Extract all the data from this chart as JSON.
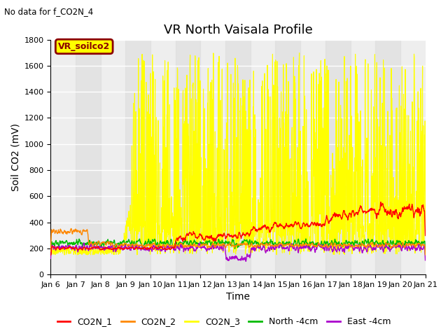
{
  "title": "VR North Vaisala Profile",
  "subtitle": "No data for f_CO2N_4",
  "xlabel": "Time",
  "ylabel": "Soil CO2 (mV)",
  "ylim": [
    0,
    1800
  ],
  "xlim_days": [
    6,
    21
  ],
  "xtick_labels": [
    "Jan 6",
    "Jan 7",
    "Jan 8",
    "Jan 9",
    "Jan 10",
    "Jan 11",
    "Jan 12",
    "Jan 13",
    "Jan 14",
    "Jan 15",
    "Jan 16",
    "Jan 17",
    "Jan 18",
    "Jan 19",
    "Jan 20",
    "Jan 21"
  ],
  "legend_label": "VR_soilco2",
  "legend_box_color": "#ffff00",
  "legend_box_edge": "#8B0000",
  "legend_text_color": "#8B0000",
  "series_colors": {
    "CO2N_1": "#ff0000",
    "CO2N_2": "#ff8800",
    "CO2N_3": "#ffff00",
    "North_4cm": "#00bb00",
    "East_4cm": "#aa00cc"
  },
  "band_color": "#dddddd",
  "plot_bg": "#eeeeee",
  "title_fontsize": 13,
  "axis_fontsize": 10,
  "tick_fontsize": 8,
  "legend_fontsize": 9
}
